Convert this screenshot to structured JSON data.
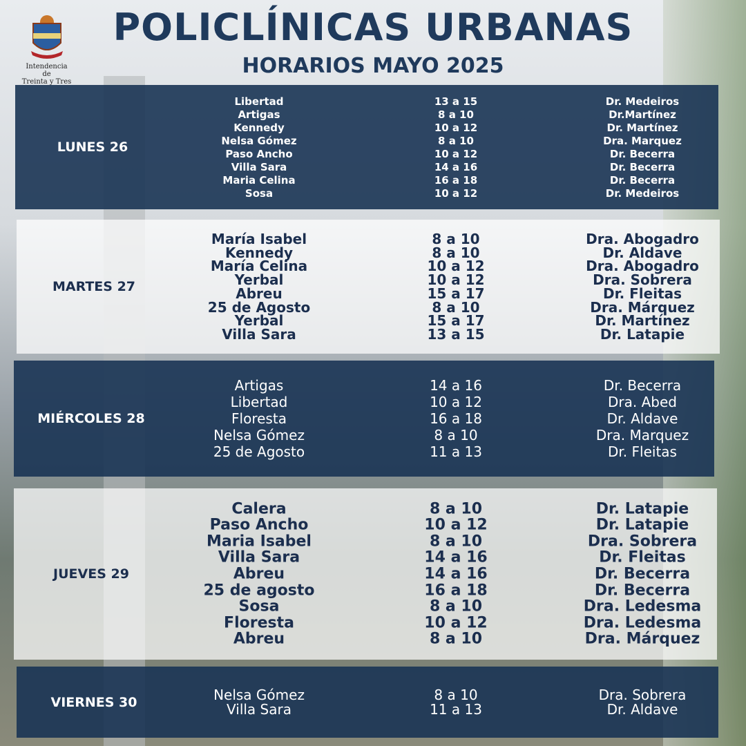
{
  "header": {
    "title": "POLICLÍNICAS URBANAS",
    "subtitle": "HORARIOS MAYO 2025",
    "logo_lines": [
      "Intendencia de",
      "Treinta y Tres"
    ]
  },
  "days": [
    {
      "day": "LUNES 26",
      "rows": [
        [
          "Libertad",
          "13 a 15",
          "Dr. Medeiros"
        ],
        [
          "Artigas",
          "8 a 10",
          "Dr.Martínez"
        ],
        [
          "Kennedy",
          "10 a 12",
          "Dr. Martínez"
        ],
        [
          "Nelsa Gómez",
          "8 a 10",
          "Dra. Marquez"
        ],
        [
          "Paso Ancho",
          "10 a 12",
          "Dr. Becerra"
        ],
        [
          "Villa Sara",
          "14 a 16",
          "Dr. Becerra"
        ],
        [
          "Maria Celina",
          "16 a 18",
          "Dr. Becerra"
        ],
        [
          "Sosa",
          "10 a 12",
          "Dr. Medeiros"
        ]
      ]
    },
    {
      "day": "MARTES 27",
      "rows": [
        [
          "María Isabel",
          "8 a 10",
          "Dra. Abogadro"
        ],
        [
          "Kennedy",
          "8 a 10",
          "Dr. Aldave"
        ],
        [
          "María Celina",
          "10 a 12",
          "Dra. Abogadro"
        ],
        [
          "Yerbal",
          "10 a 12",
          "Dra. Sobrera"
        ],
        [
          "Abreu",
          "15 a 17",
          "Dr. Fleitas"
        ],
        [
          "25 de Agosto",
          "8 a 10",
          "Dra. Márquez"
        ],
        [
          "Yerbal",
          "15 a 17",
          "Dr. Martínez"
        ],
        [
          "Villa Sara",
          "13 a 15",
          "Dr. Latapie"
        ]
      ]
    },
    {
      "day": "MIÉRCOLES 28",
      "rows": [
        [
          "Artigas",
          "14 a 16",
          "Dr. Becerra"
        ],
        [
          "Libertad",
          "10 a 12",
          "Dra. Abed"
        ],
        [
          "Floresta",
          "16 a 18",
          "Dr. Aldave"
        ],
        [
          "Nelsa Gómez",
          "8 a 10",
          "Dra. Marquez"
        ],
        [
          "25 de Agosto",
          "11 a 13",
          "Dr. Fleitas"
        ]
      ]
    },
    {
      "day": "JUEVES 29",
      "rows": [
        [
          "Calera",
          "8 a 10",
          "Dr. Latapie"
        ],
        [
          "Paso Ancho",
          "10 a 12",
          "Dr. Latapie"
        ],
        [
          "Maria Isabel",
          "8 a 10",
          "Dra. Sobrera"
        ],
        [
          "Villa Sara",
          "14 a 16",
          "Dr. Fleitas"
        ],
        [
          "Abreu",
          "14 a 16",
          "Dr. Becerra"
        ],
        [
          "25 de agosto",
          "16 a 18",
          "Dr. Becerra"
        ],
        [
          "Sosa",
          "8 a 10",
          "Dra. Ledesma"
        ],
        [
          "Floresta",
          "10 a 12",
          "Dra. Ledesma"
        ],
        [
          "Abreu",
          "8 a 10",
          "Dra. Márquez"
        ]
      ]
    },
    {
      "day": "VIERNES 30",
      "rows": [
        [
          "Nelsa Gómez",
          "8 a 10",
          "Dra. Sobrera"
        ],
        [
          "Villa Sara",
          "11 a 13",
          "Dr. Aldave"
        ]
      ]
    }
  ]
}
